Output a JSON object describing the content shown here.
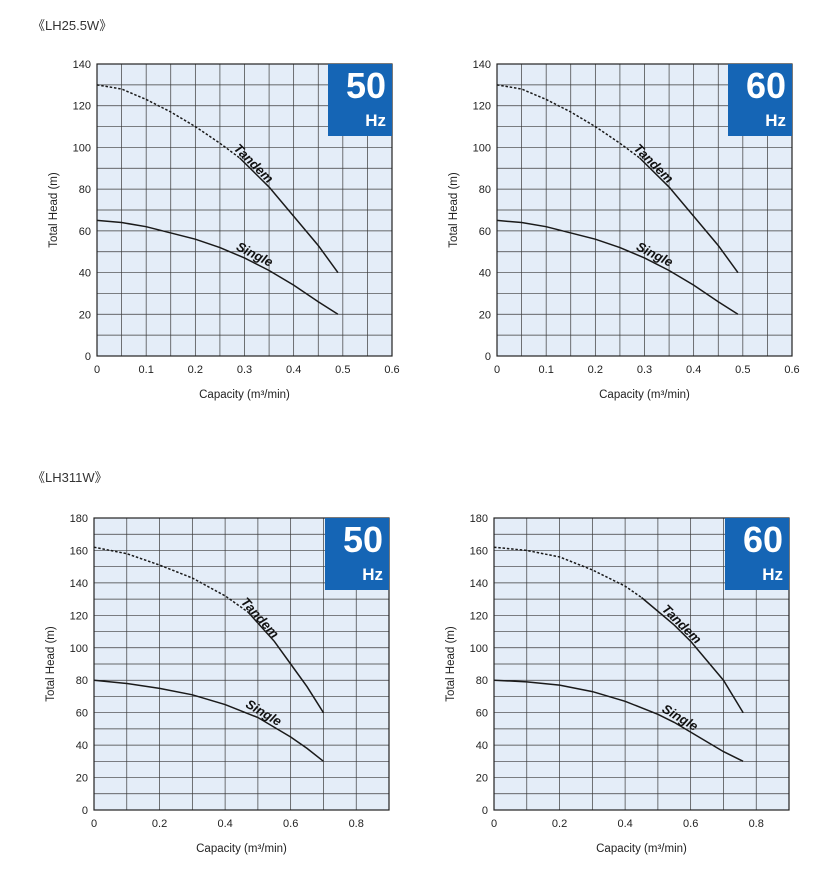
{
  "sections": [
    {
      "title": "《LH25.5W》"
    },
    {
      "title": "《LH311W》"
    }
  ],
  "colors": {
    "plot_bg": "#e4edf8",
    "grid": "#3a3a3a",
    "badge": "#1565b5",
    "curve": "#1a1a1a"
  },
  "chart_data": [
    {
      "type": "line",
      "model": "LH25.5W",
      "badge": {
        "number": "50",
        "unit": "Hz"
      },
      "xlabel": "Capacity (m³/min)",
      "ylabel": "Total Head (m)",
      "xlim": [
        0,
        0.6
      ],
      "ylim": [
        0,
        140
      ],
      "xticks": [
        "0",
        "0.1",
        "0.2",
        "0.3",
        "0.4",
        "0.5",
        "0.6"
      ],
      "yticks": [
        "0",
        "20",
        "40",
        "60",
        "80",
        "100",
        "120",
        "140"
      ],
      "grid": true,
      "series": [
        {
          "name": "Tandem",
          "dashed_until_x": 0.29,
          "x": [
            0,
            0.05,
            0.1,
            0.15,
            0.2,
            0.25,
            0.29,
            0.35,
            0.4,
            0.45,
            0.49
          ],
          "y": [
            130,
            128,
            123,
            117,
            110,
            102,
            95,
            81,
            67,
            53,
            40
          ]
        },
        {
          "name": "Single",
          "x": [
            0,
            0.05,
            0.1,
            0.15,
            0.2,
            0.25,
            0.3,
            0.35,
            0.4,
            0.45,
            0.49
          ],
          "y": [
            65,
            64,
            62,
            59,
            56,
            52,
            47,
            41,
            34,
            26,
            20
          ]
        }
      ]
    },
    {
      "type": "line",
      "model": "LH25.5W",
      "badge": {
        "number": "60",
        "unit": "Hz"
      },
      "xlabel": "Capacity (m³/min)",
      "ylabel": "Total Head (m)",
      "xlim": [
        0,
        0.6
      ],
      "ylim": [
        0,
        140
      ],
      "xticks": [
        "0",
        "0.1",
        "0.2",
        "0.3",
        "0.4",
        "0.5",
        "0.6"
      ],
      "yticks": [
        "0",
        "20",
        "40",
        "60",
        "80",
        "100",
        "120",
        "140"
      ],
      "grid": true,
      "series": [
        {
          "name": "Tandem",
          "dashed_until_x": 0.29,
          "x": [
            0,
            0.05,
            0.1,
            0.15,
            0.2,
            0.25,
            0.29,
            0.35,
            0.4,
            0.45,
            0.49
          ],
          "y": [
            130,
            128,
            123,
            117,
            110,
            102,
            95,
            81,
            67,
            53,
            40
          ]
        },
        {
          "name": "Single",
          "x": [
            0,
            0.05,
            0.1,
            0.15,
            0.2,
            0.25,
            0.3,
            0.35,
            0.4,
            0.45,
            0.49
          ],
          "y": [
            65,
            64,
            62,
            59,
            56,
            52,
            47,
            41,
            34,
            26,
            20
          ]
        }
      ]
    },
    {
      "type": "line",
      "model": "LH311W",
      "badge": {
        "number": "50",
        "unit": "Hz"
      },
      "xlabel": "Capacity (m³/min)",
      "ylabel": "Total Head (m)",
      "xlim": [
        0,
        0.9
      ],
      "ylim": [
        0,
        180
      ],
      "xticks": [
        "0",
        "0.2",
        "0.4",
        "0.6",
        "0.8"
      ],
      "xtick_values": [
        0,
        0.2,
        0.4,
        0.6,
        0.8
      ],
      "yticks": [
        "0",
        "20",
        "40",
        "60",
        "80",
        "100",
        "120",
        "140",
        "160",
        "180"
      ],
      "grid": true,
      "series": [
        {
          "name": "Tandem",
          "dashed_until_x": 0.47,
          "x": [
            0,
            0.1,
            0.2,
            0.3,
            0.4,
            0.47,
            0.55,
            0.6,
            0.65,
            0.7
          ],
          "y": [
            162,
            158,
            151,
            143,
            132,
            122,
            104,
            90,
            76,
            60
          ]
        },
        {
          "name": "Single",
          "x": [
            0,
            0.1,
            0.2,
            0.3,
            0.4,
            0.5,
            0.55,
            0.6,
            0.65,
            0.7
          ],
          "y": [
            80,
            78,
            75,
            71,
            65,
            57,
            51,
            45,
            38,
            30
          ]
        }
      ]
    },
    {
      "type": "line",
      "model": "LH311W",
      "badge": {
        "number": "60",
        "unit": "Hz"
      },
      "xlabel": "Capacity (m³/min)",
      "ylabel": "Total Head (m)",
      "xlim": [
        0,
        0.9
      ],
      "ylim": [
        0,
        180
      ],
      "xticks": [
        "0",
        "0.2",
        "0.4",
        "0.6",
        "0.8"
      ],
      "xtick_values": [
        0,
        0.2,
        0.4,
        0.6,
        0.8
      ],
      "yticks": [
        "0",
        "20",
        "40",
        "60",
        "80",
        "100",
        "120",
        "140",
        "160",
        "180"
      ],
      "grid": true,
      "series": [
        {
          "name": "Tandem",
          "dashed_until_x": 0.45,
          "x": [
            0,
            0.1,
            0.2,
            0.3,
            0.4,
            0.45,
            0.55,
            0.6,
            0.65,
            0.7,
            0.76
          ],
          "y": [
            162,
            160,
            156,
            148,
            138,
            131,
            114,
            104,
            92,
            80,
            60
          ]
        },
        {
          "name": "Single",
          "x": [
            0,
            0.1,
            0.2,
            0.3,
            0.4,
            0.5,
            0.55,
            0.6,
            0.65,
            0.7,
            0.76
          ],
          "y": [
            80,
            79,
            77,
            73,
            67,
            59,
            54,
            48,
            42,
            36,
            30
          ]
        }
      ]
    }
  ]
}
